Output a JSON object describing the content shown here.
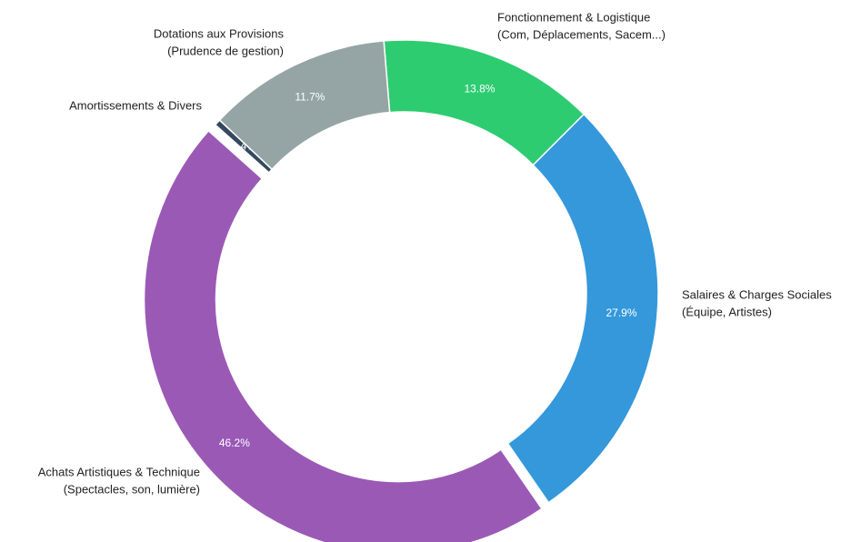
{
  "chart_data": {
    "type": "donut",
    "labels": [
      [
        "Fonctionnement & Logistique",
        "(Com, Déplacements, Sacem...)"
      ],
      [
        "Salaires & Charges Sociales",
        "(Équipe, Artistes)"
      ],
      [
        "Achats Artistiques & Technique",
        "(Spectacles, son, lumière)"
      ],
      [
        "Amortissements & Divers"
      ],
      [
        "Dotations aux Provisions",
        "(Prudence de gestion)"
      ]
    ],
    "values": [
      13.8,
      27.9,
      46.2,
      0.4,
      11.7
    ],
    "value_labels": [
      "13.8%",
      "27.9%",
      "46.2%",
      "0.4%",
      "11.7%"
    ],
    "colors": [
      "#2ecc71",
      "#3498db",
      "#9b59b6",
      "#34495e",
      "#95a5a6"
    ],
    "exploded": [
      false,
      false,
      true,
      false,
      false
    ]
  }
}
